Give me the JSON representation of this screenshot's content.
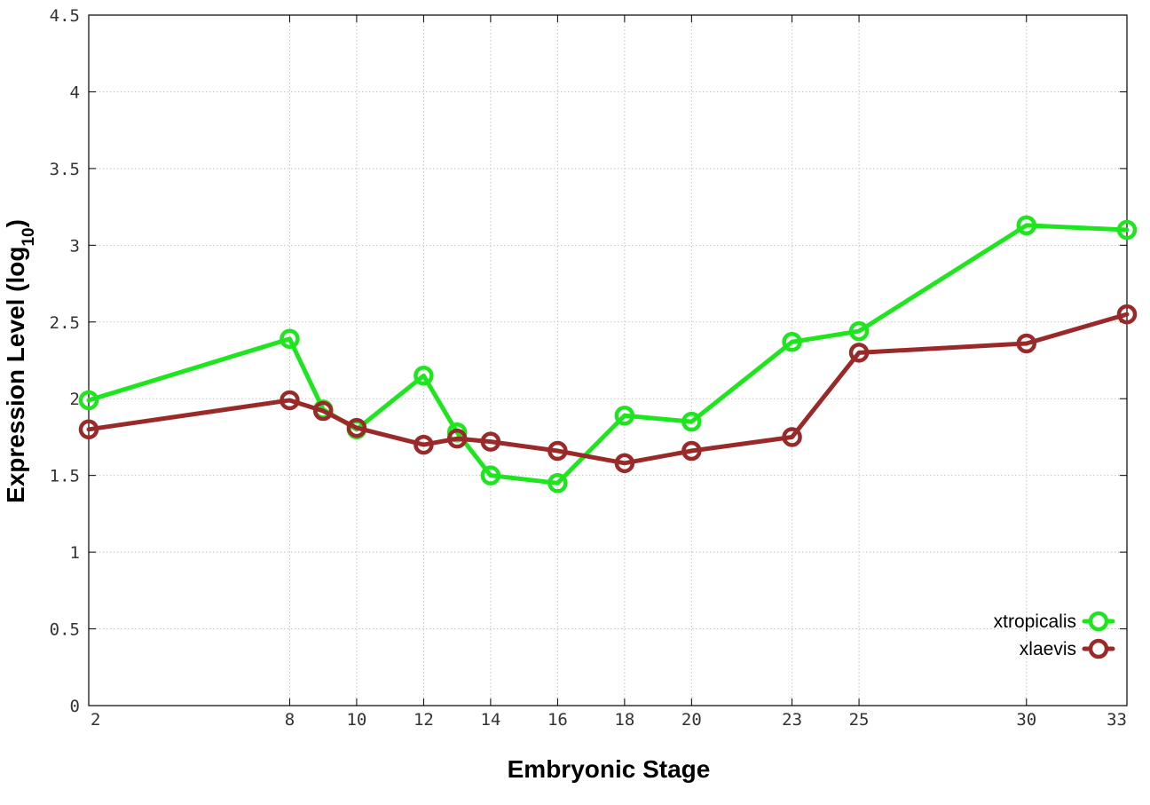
{
  "chart_data": {
    "type": "line",
    "title": "",
    "xlabel": "Embryonic Stage",
    "ylabel_main": "Expression Level (log",
    "ylabel_sub": "10",
    "ylabel_close": ")",
    "xlim": [
      2,
      33
    ],
    "ylim": [
      0,
      4.5
    ],
    "x_ticks": [
      2,
      8,
      10,
      12,
      14,
      16,
      18,
      20,
      23,
      25,
      30,
      33
    ],
    "x_tick_labels": [
      "2",
      "8",
      "10",
      "12",
      "14",
      "16",
      "18",
      "20",
      "23",
      "25",
      "30",
      "33"
    ],
    "y_ticks": [
      0,
      0.5,
      1,
      1.5,
      2,
      2.5,
      3,
      3.5,
      4,
      4.5
    ],
    "y_tick_labels": [
      "0",
      "0.5",
      "1",
      "1.5",
      "2",
      "2.5",
      "3",
      "3.5",
      "4",
      "4.5"
    ],
    "grid": true,
    "legend_position": "bottom-right",
    "series": [
      {
        "name": "xtropicalis",
        "color": "#1ee61e",
        "x": [
          2,
          8,
          9,
          10,
          12,
          13,
          14,
          16,
          18,
          20,
          23,
          25,
          30,
          33
        ],
        "y": [
          1.99,
          2.39,
          1.93,
          1.8,
          2.15,
          1.78,
          1.5,
          1.45,
          1.89,
          1.85,
          2.37,
          2.44,
          3.13,
          3.1
        ]
      },
      {
        "name": "xlaevis",
        "color": "#9a2a2a",
        "x": [
          2,
          8,
          9,
          10,
          12,
          13,
          14,
          16,
          18,
          20,
          23,
          25,
          30,
          33
        ],
        "y": [
          1.8,
          1.99,
          1.92,
          1.81,
          1.7,
          1.74,
          1.72,
          1.66,
          1.58,
          1.66,
          1.75,
          2.3,
          2.36,
          2.55
        ]
      }
    ]
  }
}
